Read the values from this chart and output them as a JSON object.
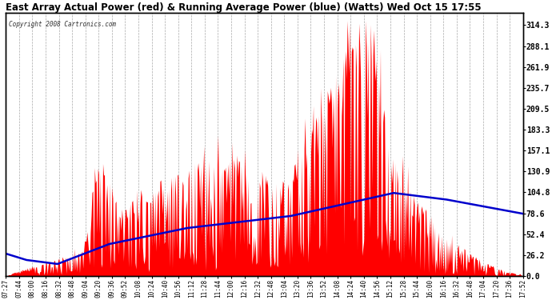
{
  "title": "East Array Actual Power (red) & Running Average Power (blue) (Watts) Wed Oct 15 17:55",
  "copyright": "Copyright 2008 Cartronics.com",
  "ylabel_right_ticks": [
    0.0,
    26.2,
    52.4,
    78.6,
    104.8,
    130.9,
    157.1,
    183.3,
    209.5,
    235.7,
    261.9,
    288.1,
    314.3
  ],
  "ymax": 330,
  "x_tick_labels": [
    "07:27",
    "07:44",
    "08:00",
    "08:16",
    "08:32",
    "08:48",
    "09:04",
    "09:20",
    "09:36",
    "09:52",
    "10:08",
    "10:24",
    "10:40",
    "10:56",
    "11:12",
    "11:28",
    "11:44",
    "12:00",
    "12:16",
    "12:32",
    "12:48",
    "13:04",
    "13:20",
    "13:36",
    "13:52",
    "14:08",
    "14:24",
    "14:40",
    "14:56",
    "15:12",
    "15:28",
    "15:44",
    "16:00",
    "16:16",
    "16:32",
    "16:48",
    "17:04",
    "17:20",
    "17:36",
    "17:52"
  ],
  "background_color": "#ffffff",
  "plot_background": "#ffffff",
  "grid_color": "#aaaaaa",
  "area_color": "#ff0000",
  "line_color": "#0000cc",
  "title_color": "#000000"
}
